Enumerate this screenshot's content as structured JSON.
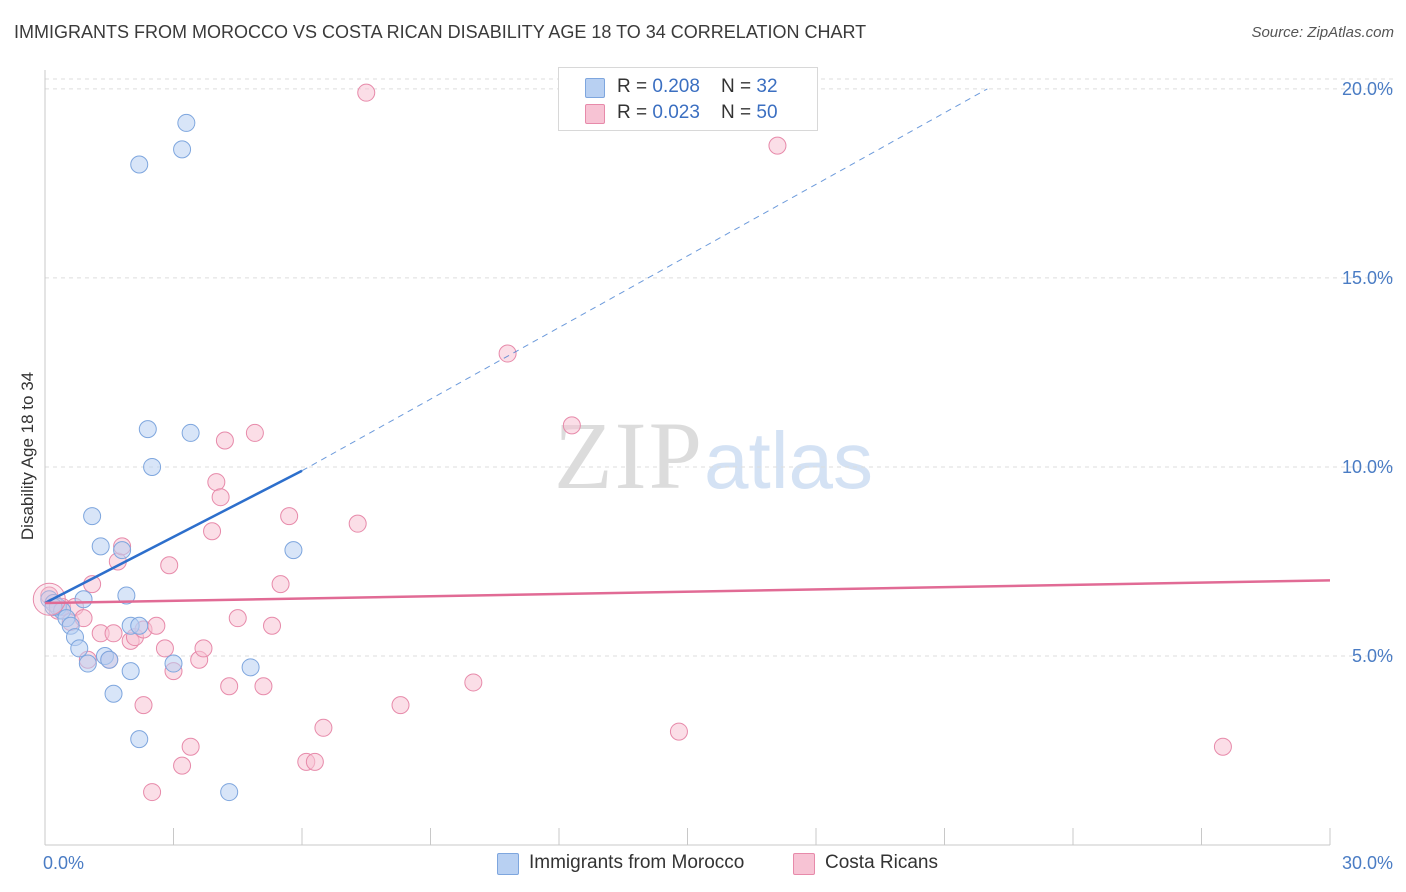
{
  "header": {
    "title": "IMMIGRANTS FROM MOROCCO VS COSTA RICAN DISABILITY AGE 18 TO 34 CORRELATION CHART",
    "source": "Source: ZipAtlas.com"
  },
  "watermark": {
    "zip": "ZIP",
    "atlas": "atlas"
  },
  "legend": {
    "series1": {
      "r_label": "R = ",
      "r_value": "0.208",
      "n_label": "N = ",
      "n_value": "32"
    },
    "series2": {
      "r_label": "R = ",
      "r_value": "0.023",
      "n_label": "N = ",
      "n_value": "50"
    }
  },
  "colors": {
    "blue_fill": "#b8d0f2",
    "blue_stroke": "#7ea6de",
    "blue_line": "#2d6fcc",
    "pink_fill": "#f7c3d4",
    "pink_stroke": "#e78aaa",
    "pink_line": "#e16b95",
    "grid": "#dddddd",
    "tick_label": "#4a7cc4"
  },
  "chart_data": {
    "type": "scatter",
    "title": "IMMIGRANTS FROM MOROCCO VS COSTA RICAN DISABILITY AGE 18 TO 34 CORRELATION CHART",
    "xlabel": "",
    "ylabel": "Disability Age 18 to 34",
    "xlim": [
      0,
      30
    ],
    "ylim": [
      0,
      20.5
    ],
    "x_tick_labels": [
      "0.0%",
      "30.0%"
    ],
    "y_ticks": [
      5,
      10,
      15,
      20
    ],
    "y_tick_labels": [
      "5.0%",
      "10.0%",
      "15.0%",
      "20.0%"
    ],
    "grid": "horizontal dashed",
    "legend_position": "top-center",
    "series": [
      {
        "name": "Immigrants from Morocco",
        "color": "blue",
        "points": [
          [
            0.1,
            6.5
          ],
          [
            0.2,
            6.4
          ],
          [
            0.3,
            6.3
          ],
          [
            0.4,
            6.2
          ],
          [
            0.5,
            6.0
          ],
          [
            0.6,
            5.8
          ],
          [
            0.7,
            5.5
          ],
          [
            0.8,
            5.2
          ],
          [
            0.9,
            6.5
          ],
          [
            1.0,
            4.8
          ],
          [
            1.1,
            8.7
          ],
          [
            1.3,
            7.9
          ],
          [
            1.4,
            5.0
          ],
          [
            1.6,
            4.0
          ],
          [
            1.8,
            7.8
          ],
          [
            1.9,
            6.6
          ],
          [
            2.0,
            5.8
          ],
          [
            2.0,
            4.6
          ],
          [
            2.2,
            5.8
          ],
          [
            2.2,
            2.8
          ],
          [
            2.2,
            18.0
          ],
          [
            2.4,
            11.0
          ],
          [
            2.5,
            10.0
          ],
          [
            3.0,
            4.8
          ],
          [
            3.2,
            18.4
          ],
          [
            3.3,
            19.1
          ],
          [
            3.4,
            10.9
          ],
          [
            4.3,
            1.4
          ],
          [
            4.8,
            4.7
          ],
          [
            5.8,
            7.8
          ],
          [
            1.5,
            4.9
          ],
          [
            0.2,
            6.3
          ]
        ],
        "trend": {
          "x": [
            0,
            6.0
          ],
          "y": [
            6.4,
            9.9
          ],
          "extended": {
            "x": [
              6.0,
              22.0
            ],
            "y": [
              9.9,
              20.0
            ]
          }
        }
      },
      {
        "name": "Costa Ricans",
        "color": "pink",
        "points": [
          [
            0.1,
            6.6
          ],
          [
            0.3,
            6.2
          ],
          [
            0.4,
            6.3
          ],
          [
            0.6,
            5.9
          ],
          [
            0.7,
            6.3
          ],
          [
            0.9,
            6.0
          ],
          [
            1.0,
            4.9
          ],
          [
            1.1,
            6.9
          ],
          [
            1.3,
            5.6
          ],
          [
            1.6,
            5.6
          ],
          [
            1.7,
            7.5
          ],
          [
            1.8,
            7.9
          ],
          [
            2.0,
            5.4
          ],
          [
            2.1,
            5.5
          ],
          [
            2.3,
            5.7
          ],
          [
            2.3,
            3.7
          ],
          [
            2.5,
            1.4
          ],
          [
            2.6,
            5.8
          ],
          [
            2.8,
            5.2
          ],
          [
            2.9,
            7.4
          ],
          [
            3.0,
            4.6
          ],
          [
            3.2,
            2.1
          ],
          [
            3.4,
            2.6
          ],
          [
            3.6,
            4.9
          ],
          [
            3.7,
            5.2
          ],
          [
            3.9,
            8.3
          ],
          [
            4.0,
            9.6
          ],
          [
            4.1,
            9.2
          ],
          [
            4.2,
            10.7
          ],
          [
            4.3,
            4.2
          ],
          [
            4.5,
            6.0
          ],
          [
            4.9,
            10.9
          ],
          [
            5.1,
            4.2
          ],
          [
            5.3,
            5.8
          ],
          [
            5.5,
            6.9
          ],
          [
            5.7,
            8.7
          ],
          [
            6.1,
            2.2
          ],
          [
            6.3,
            2.2
          ],
          [
            6.5,
            3.1
          ],
          [
            7.3,
            8.5
          ],
          [
            7.5,
            19.9
          ],
          [
            8.3,
            3.7
          ],
          [
            10.0,
            4.3
          ],
          [
            10.8,
            13.0
          ],
          [
            12.3,
            11.1
          ],
          [
            14.8,
            3.0
          ],
          [
            17.1,
            18.5
          ],
          [
            27.5,
            2.6
          ],
          [
            0.2,
            6.4
          ],
          [
            1.5,
            4.9
          ]
        ],
        "trend": {
          "x": [
            0,
            30
          ],
          "y": [
            6.4,
            7.0
          ]
        }
      }
    ]
  },
  "bottom_legend": {
    "item1": "Immigrants from Morocco",
    "item2": "Costa Ricans"
  }
}
